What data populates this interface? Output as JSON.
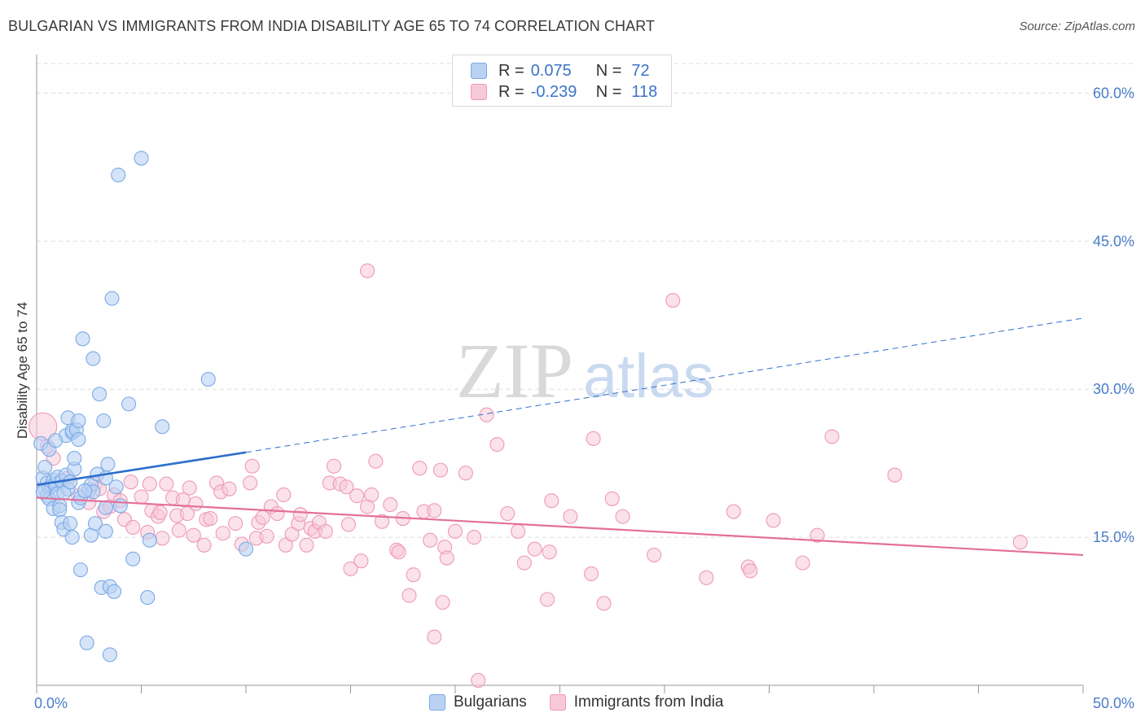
{
  "header": {
    "title": "BULGARIAN VS IMMIGRANTS FROM INDIA DISABILITY AGE 65 TO 74 CORRELATION CHART",
    "source": "Source: ZipAtlas.com"
  },
  "watermark": {
    "zip": "ZIP",
    "atlas": "atlas"
  },
  "colors": {
    "blue": "#7aaae6",
    "blue_fill": "#b9d2f3",
    "blue_line": "#2e6fcc",
    "pink": "#ee9ab6",
    "pink_fill": "#f7c8d8",
    "pink_line": "#e46f9a",
    "axis_text": "#4a7cc9",
    "grid": "#dddddd"
  },
  "legend_stats": [
    {
      "r_label": "R =",
      "r_value": "0.075",
      "n_label": "N =",
      "n_value": "72"
    },
    {
      "r_label": "R =",
      "r_value": "-0.239",
      "n_label": "N =",
      "n_value": "118"
    }
  ],
  "legend": {
    "series1": "Bulgarians",
    "series2": "Immigrants from India"
  },
  "chart_data": {
    "type": "scatter",
    "title": "BULGARIAN VS IMMIGRANTS FROM INDIA DISABILITY AGE 65 TO 74 CORRELATION CHART",
    "xlabel": "",
    "ylabel": "Disability Age 65 to 74",
    "xlim": [
      0,
      50
    ],
    "ylim": [
      0,
      63
    ],
    "x_tick_labels": [
      "0.0%",
      "50.0%"
    ],
    "y_ticks": [
      15,
      30,
      45,
      60
    ],
    "y_tick_labels": [
      "15.0%",
      "30.0%",
      "45.0%",
      "60.0%"
    ],
    "grid": true,
    "series": [
      {
        "name": "Bulgarians",
        "R": 0.075,
        "N": 72,
        "trend": {
          "x0": 0,
          "y0": 20.3,
          "x1": 10,
          "y1": 23.6,
          "dash_to_x": 50,
          "dash_to_y": 37.2
        },
        "points": [
          [
            0.2,
            24.5
          ],
          [
            0.3,
            21.0
          ],
          [
            0.4,
            19.8
          ],
          [
            0.5,
            20.5
          ],
          [
            0.5,
            19.2
          ],
          [
            0.6,
            20.0
          ],
          [
            0.6,
            18.9
          ],
          [
            0.7,
            20.2
          ],
          [
            0.8,
            20.8
          ],
          [
            0.8,
            17.9
          ],
          [
            0.9,
            20.4
          ],
          [
            1.0,
            21.1
          ],
          [
            1.0,
            19.4
          ],
          [
            1.1,
            18.2
          ],
          [
            1.1,
            17.8
          ],
          [
            1.2,
            16.5
          ],
          [
            1.2,
            20.7
          ],
          [
            1.3,
            15.8
          ],
          [
            1.4,
            21.3
          ],
          [
            1.4,
            25.3
          ],
          [
            1.5,
            27.1
          ],
          [
            1.5,
            19.9
          ],
          [
            1.6,
            16.4
          ],
          [
            1.7,
            25.6
          ],
          [
            1.7,
            25.8
          ],
          [
            1.7,
            15.0
          ],
          [
            1.8,
            21.9
          ],
          [
            1.8,
            23.0
          ],
          [
            1.9,
            25.9
          ],
          [
            2.0,
            24.9
          ],
          [
            2.0,
            26.8
          ],
          [
            2.0,
            18.5
          ],
          [
            2.1,
            19.0
          ],
          [
            2.1,
            11.7
          ],
          [
            2.2,
            35.1
          ],
          [
            2.4,
            4.3
          ],
          [
            2.5,
            19.8
          ],
          [
            2.6,
            20.3
          ],
          [
            2.6,
            15.2
          ],
          [
            2.7,
            19.6
          ],
          [
            2.7,
            33.1
          ],
          [
            2.8,
            16.4
          ],
          [
            2.9,
            21.4
          ],
          [
            3.0,
            29.5
          ],
          [
            3.1,
            9.9
          ],
          [
            3.2,
            26.8
          ],
          [
            3.3,
            21.0
          ],
          [
            3.3,
            18.0
          ],
          [
            3.3,
            15.6
          ],
          [
            3.4,
            22.4
          ],
          [
            3.5,
            10.0
          ],
          [
            3.5,
            3.1
          ],
          [
            3.6,
            39.2
          ],
          [
            3.7,
            9.5
          ],
          [
            3.9,
            51.7
          ],
          [
            4.0,
            18.2
          ],
          [
            4.4,
            28.5
          ],
          [
            4.6,
            12.8
          ],
          [
            5.0,
            53.4
          ],
          [
            5.3,
            8.9
          ],
          [
            5.4,
            14.7
          ],
          [
            6.0,
            26.2
          ],
          [
            8.2,
            31.0
          ],
          [
            10.0,
            13.8
          ],
          [
            0.4,
            22.1
          ],
          [
            0.6,
            23.9
          ],
          [
            0.9,
            24.8
          ],
          [
            1.3,
            19.5
          ],
          [
            0.3,
            19.6
          ],
          [
            2.3,
            19.7
          ],
          [
            1.6,
            20.6
          ],
          [
            3.8,
            20.1
          ]
        ]
      },
      {
        "name": "Immigrants from India",
        "R": -0.239,
        "N": 118,
        "trend": {
          "x0": 0,
          "y0": 19.0,
          "x1": 50,
          "y1": 13.2
        },
        "points": [
          [
            0.3,
            26.2
          ],
          [
            0.5,
            24.2
          ],
          [
            0.8,
            23.0
          ],
          [
            1.0,
            20.5
          ],
          [
            1.5,
            21.0
          ],
          [
            2.0,
            19.2
          ],
          [
            2.5,
            18.5
          ],
          [
            2.8,
            20.4
          ],
          [
            3.0,
            19.9
          ],
          [
            3.2,
            17.6
          ],
          [
            3.5,
            18.1
          ],
          [
            3.7,
            19.3
          ],
          [
            4.0,
            18.7
          ],
          [
            4.2,
            16.8
          ],
          [
            4.5,
            20.6
          ],
          [
            4.6,
            16.0
          ],
          [
            5.0,
            19.1
          ],
          [
            5.3,
            15.5
          ],
          [
            5.4,
            20.4
          ],
          [
            5.5,
            17.7
          ],
          [
            5.8,
            17.1
          ],
          [
            5.9,
            17.5
          ],
          [
            6.0,
            14.9
          ],
          [
            6.2,
            20.4
          ],
          [
            6.5,
            19.0
          ],
          [
            6.7,
            17.2
          ],
          [
            6.8,
            15.7
          ],
          [
            7.0,
            18.8
          ],
          [
            7.2,
            17.4
          ],
          [
            7.3,
            20.0
          ],
          [
            7.5,
            15.2
          ],
          [
            7.6,
            18.4
          ],
          [
            8.0,
            14.2
          ],
          [
            8.1,
            16.8
          ],
          [
            8.3,
            16.9
          ],
          [
            8.6,
            20.5
          ],
          [
            8.8,
            19.6
          ],
          [
            8.9,
            15.4
          ],
          [
            9.2,
            19.9
          ],
          [
            9.5,
            16.4
          ],
          [
            9.8,
            14.3
          ],
          [
            10.2,
            20.5
          ],
          [
            10.3,
            22.2
          ],
          [
            10.5,
            14.9
          ],
          [
            10.6,
            16.5
          ],
          [
            10.8,
            17.0
          ],
          [
            11.0,
            15.1
          ],
          [
            11.2,
            18.1
          ],
          [
            11.5,
            17.4
          ],
          [
            11.8,
            19.3
          ],
          [
            11.9,
            14.2
          ],
          [
            12.2,
            15.3
          ],
          [
            12.5,
            16.4
          ],
          [
            12.6,
            17.3
          ],
          [
            12.9,
            14.2
          ],
          [
            13.1,
            15.9
          ],
          [
            13.3,
            15.6
          ],
          [
            13.5,
            16.5
          ],
          [
            13.8,
            15.6
          ],
          [
            14.0,
            20.5
          ],
          [
            14.2,
            22.2
          ],
          [
            14.5,
            20.4
          ],
          [
            14.8,
            20.1
          ],
          [
            14.9,
            16.3
          ],
          [
            15.0,
            11.8
          ],
          [
            15.3,
            19.2
          ],
          [
            15.5,
            12.6
          ],
          [
            15.8,
            18.1
          ],
          [
            16.0,
            19.3
          ],
          [
            16.2,
            22.7
          ],
          [
            16.5,
            16.6
          ],
          [
            16.9,
            18.3
          ],
          [
            17.2,
            13.7
          ],
          [
            17.3,
            13.5
          ],
          [
            17.5,
            16.9
          ],
          [
            17.8,
            9.1
          ],
          [
            18.0,
            11.2
          ],
          [
            18.3,
            22.0
          ],
          [
            18.5,
            17.6
          ],
          [
            18.8,
            14.7
          ],
          [
            19.0,
            17.7
          ],
          [
            19.3,
            21.8
          ],
          [
            19.4,
            8.4
          ],
          [
            19.5,
            14.0
          ],
          [
            19.6,
            12.9
          ],
          [
            20.0,
            15.6
          ],
          [
            20.5,
            21.5
          ],
          [
            20.9,
            15.0
          ],
          [
            21.5,
            27.4
          ],
          [
            22.0,
            24.4
          ],
          [
            22.5,
            17.4
          ],
          [
            23.0,
            15.6
          ],
          [
            23.3,
            12.4
          ],
          [
            23.8,
            13.8
          ],
          [
            24.4,
            8.7
          ],
          [
            24.5,
            13.5
          ],
          [
            24.6,
            18.7
          ],
          [
            25.5,
            17.1
          ],
          [
            26.5,
            11.3
          ],
          [
            26.6,
            25.0
          ],
          [
            27.1,
            8.3
          ],
          [
            27.5,
            18.9
          ],
          [
            28.0,
            17.1
          ],
          [
            29.5,
            13.2
          ],
          [
            30.4,
            39.0
          ],
          [
            32.0,
            10.9
          ],
          [
            33.3,
            17.6
          ],
          [
            34.0,
            12.0
          ],
          [
            34.1,
            11.6
          ],
          [
            35.2,
            16.7
          ],
          [
            36.6,
            12.4
          ],
          [
            37.3,
            15.2
          ],
          [
            38.0,
            25.2
          ],
          [
            41.0,
            21.3
          ],
          [
            47.0,
            14.5
          ],
          [
            19.0,
            4.9
          ],
          [
            21.1,
            0.5
          ],
          [
            15.8,
            42.0
          ]
        ]
      }
    ]
  }
}
